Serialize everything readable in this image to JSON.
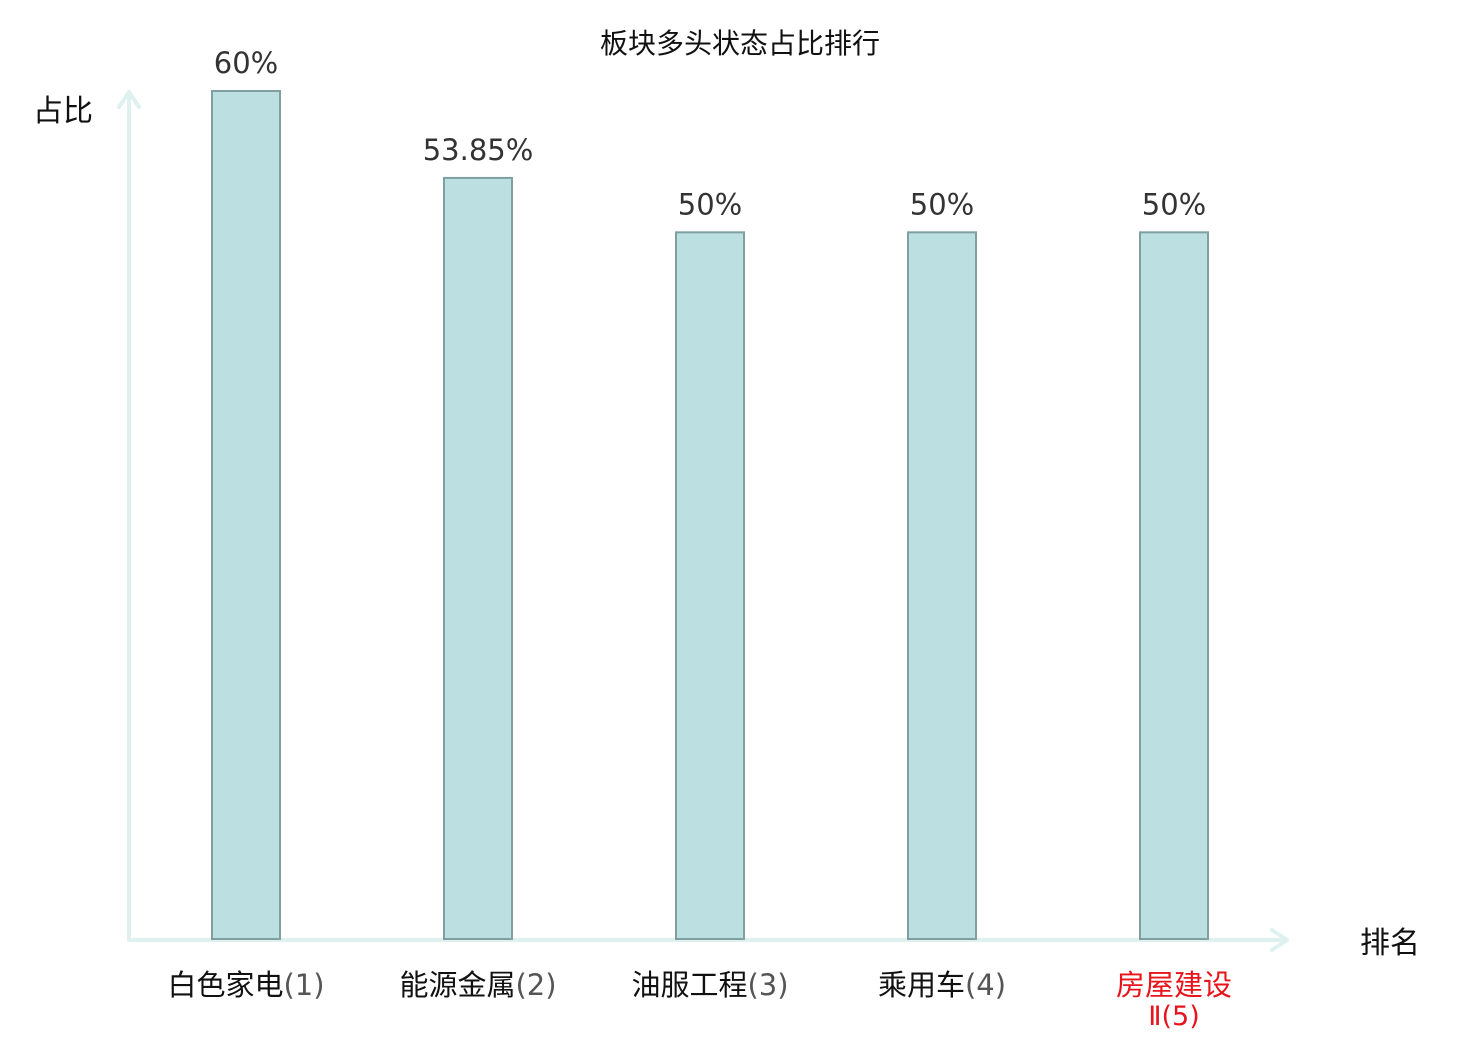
{
  "chart_data": {
    "type": "bar",
    "title": "板块多头状态占比排行",
    "ylabel": "占比",
    "xlabel": "排名",
    "categories": [
      {
        "name": "白色家电",
        "rank": "(1)",
        "highlight": false
      },
      {
        "name": "能源金属",
        "rank": "(2)",
        "highlight": false
      },
      {
        "name": "油服工程",
        "rank": "(3)",
        "highlight": false
      },
      {
        "name": "乘用车",
        "rank": "(4)",
        "highlight": false
      },
      {
        "name": "房屋建设",
        "rank": "Ⅱ(5)",
        "highlight": true
      }
    ],
    "values": [
      60,
      53.85,
      50,
      50,
      50
    ],
    "value_labels": [
      "60%",
      "53.85%",
      "50%",
      "50%",
      "50%"
    ],
    "ylim": [
      0,
      60
    ],
    "grid": false,
    "legend": "none"
  },
  "colors": {
    "bar_fill": "#bce0e1",
    "bar_stroke": "#7f9fa2",
    "axis": "#dff1ef",
    "text": "#333333",
    "category_text": "#111111",
    "rank_text": "#555555",
    "highlight": "#e8141b"
  }
}
